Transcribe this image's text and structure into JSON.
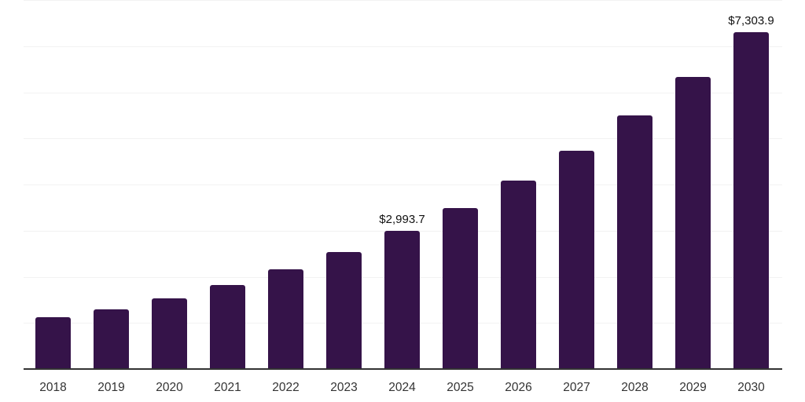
{
  "chart": {
    "background_color": "#ffffff",
    "bar_color": "#351349",
    "axis_line_color": "#333333",
    "gridline_color": "#f2f2f2",
    "data_label_color": "#111111",
    "tick_label_color": "#333333"
  },
  "chart_data": {
    "type": "bar",
    "title": "",
    "xlabel": "",
    "ylabel": "",
    "categories": [
      "2018",
      "2019",
      "2020",
      "2021",
      "2022",
      "2023",
      "2024",
      "2025",
      "2026",
      "2027",
      "2028",
      "2029",
      "2030"
    ],
    "values": [
      1120,
      1290,
      1530,
      1820,
      2160,
      2540,
      2993.7,
      3490,
      4080,
      4730,
      5500,
      6330,
      7303.9
    ],
    "data_labels": [
      {
        "category": "2024",
        "text": "$2,993.7"
      },
      {
        "category": "2030",
        "text": "$7,303.9"
      }
    ],
    "ylim": [
      0,
      8000
    ],
    "gridline_step": 1000,
    "grid": true,
    "y_tick_labels_shown": false,
    "legend": "none"
  }
}
